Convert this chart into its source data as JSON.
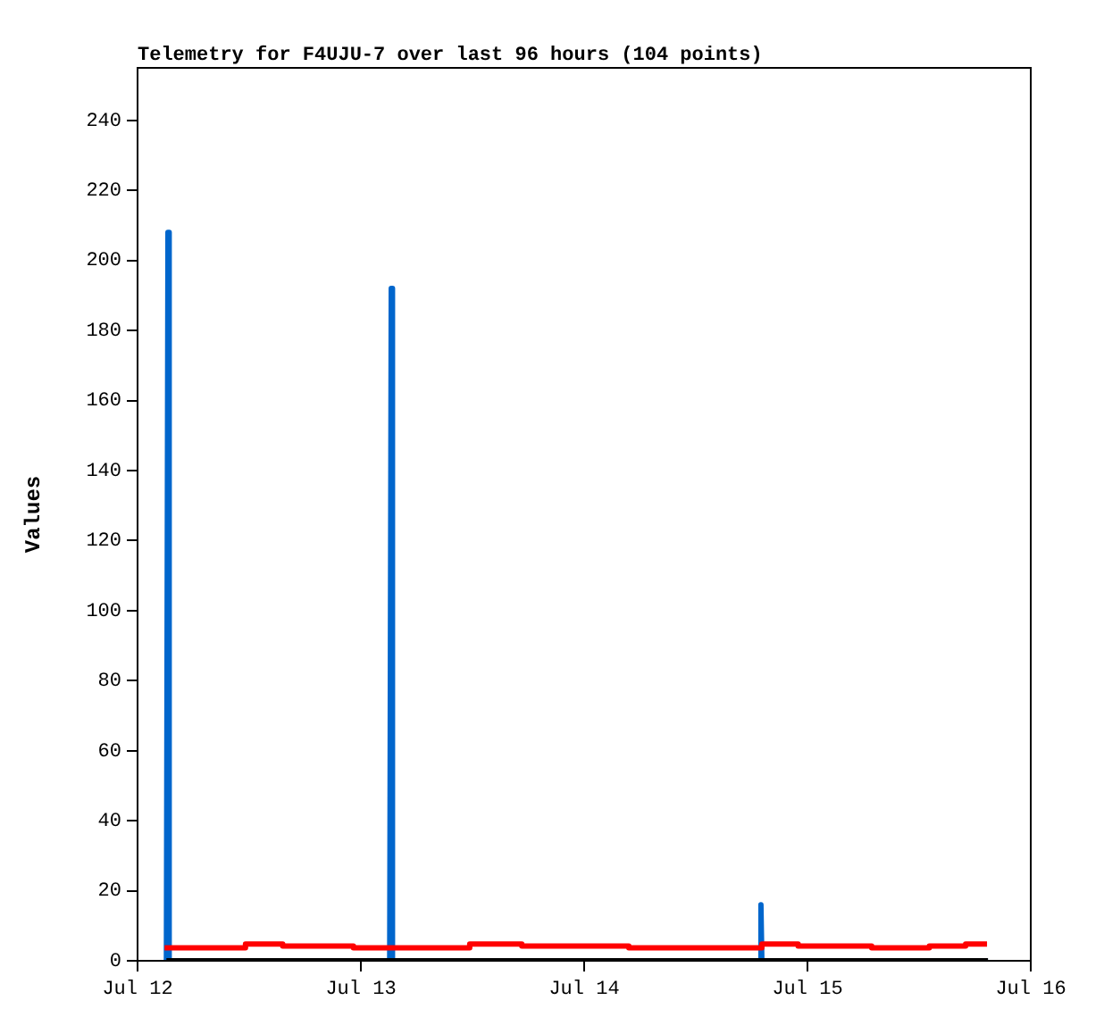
{
  "chart_data": {
    "type": "line",
    "title": "Telemetry for F4UJU-7 over last 96 hours (104 points)",
    "ylabel": "Values",
    "xlim": [
      "--07-12",
      "--07-16"
    ],
    "xticks": [
      {
        "value": "--07-12",
        "label": "Jul 12"
      },
      {
        "value": "--07-13",
        "label": "Jul 13"
      },
      {
        "value": "--07-14",
        "label": "Jul 14"
      },
      {
        "value": "--07-15",
        "label": "Jul 15"
      },
      {
        "value": "--07-16",
        "label": "Jul 16"
      }
    ],
    "ylim": [
      0,
      255
    ],
    "yticks": [
      0,
      20,
      40,
      60,
      80,
      100,
      120,
      140,
      160,
      180,
      200,
      220,
      240
    ],
    "grid": false,
    "legend": false,
    "marker": "none",
    "series": [
      {
        "color": "#0066cc",
        "x": [
          "--07-12T03:06",
          "--07-12T03:16",
          "--07-12T03:24",
          "--07-13T03:06",
          "--07-13T03:16",
          "--07-13T03:24",
          "--07-14T18:54",
          "--07-14T19:00",
          "--07-14T19:06",
          "--07-15T19:24"
        ],
        "values": [
          0,
          208,
          0,
          0,
          192,
          0,
          0,
          16,
          0,
          0
        ]
      },
      {
        "color": "#000000",
        "x": [
          "--07-12T03:06",
          "--07-15T19:24"
        ],
        "values": [
          0,
          0
        ]
      },
      {
        "type": "step",
        "color": "#ff0000",
        "x": [
          "--07-12T02:54",
          "--07-12T11:36",
          "--07-12T15:36",
          "--07-12T23:12",
          "--07-13T11:42",
          "--07-13T17:18",
          "--07-14T04:48",
          "--07-14T19:06",
          "--07-14T23:00",
          "--07-15T06:54",
          "--07-15T13:06",
          "--07-15T17:00",
          "--07-15T19:18"
        ],
        "values": [
          3.7,
          4.8,
          4.2,
          3.7,
          4.8,
          4.2,
          3.7,
          4.8,
          4.2,
          3.7,
          4.2,
          4.8,
          4.8
        ]
      }
    ]
  }
}
